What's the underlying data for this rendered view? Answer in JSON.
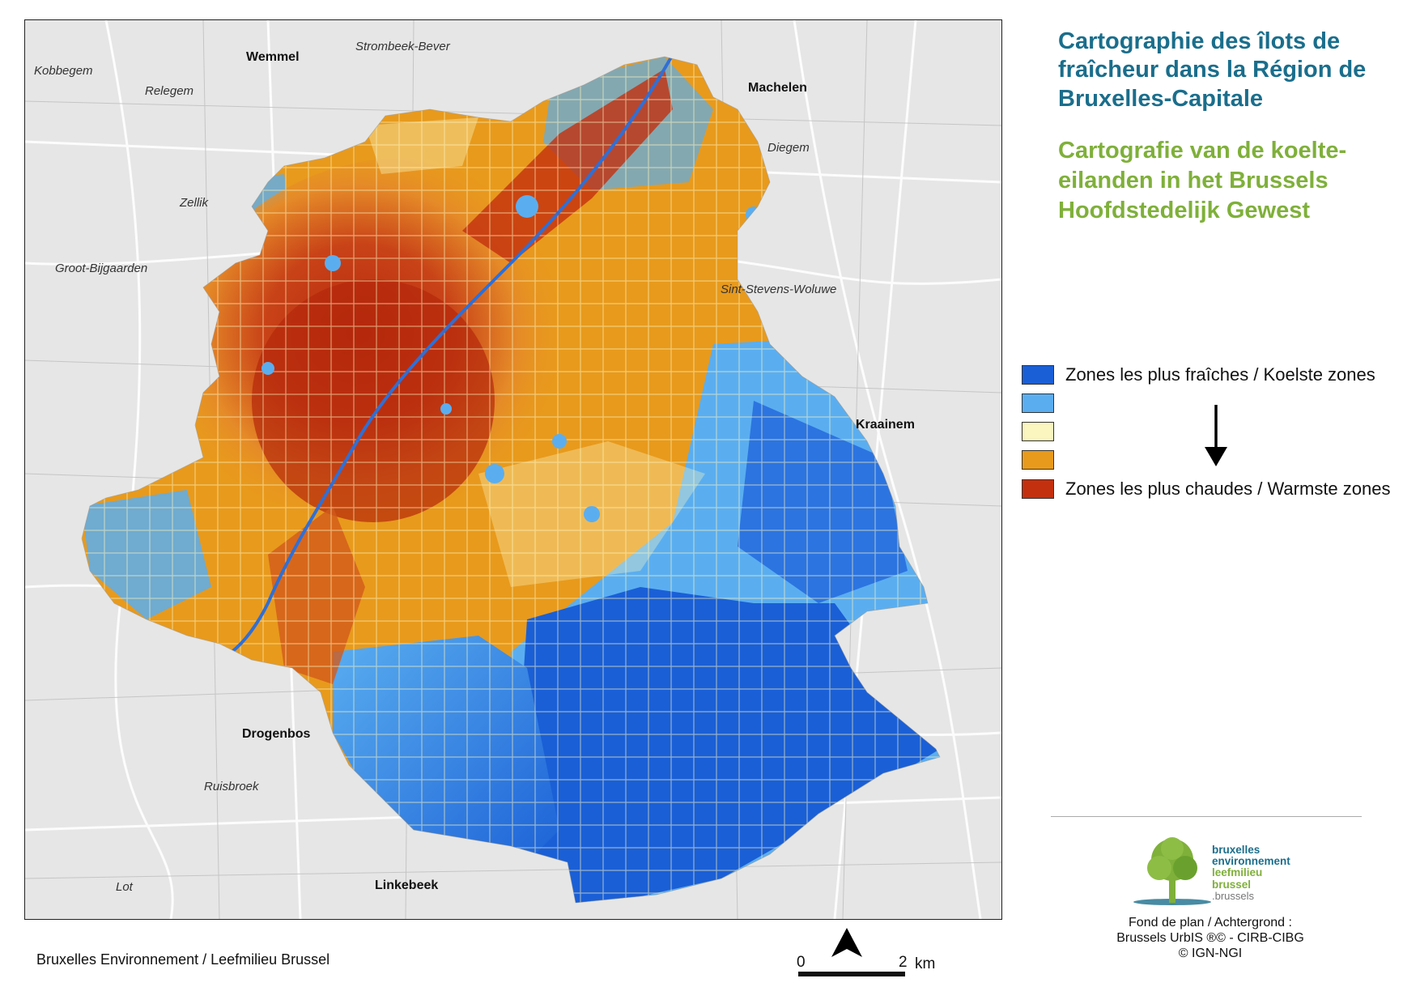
{
  "titles": {
    "fr": "Cartographie des îlots de fraîcheur dans la Région de Bruxelles-Capitale",
    "nl": "Cartografie van de koelte-eilanden in het Brussels Hoofdstedelijk Gewest"
  },
  "legend": {
    "items": [
      {
        "color": "#1a5fd6",
        "label": "Zones les plus fraîches / Koelste zones"
      },
      {
        "color": "#5aaef0",
        "label": ""
      },
      {
        "color": "#fbf5bf",
        "label": ""
      },
      {
        "color": "#e89a1c",
        "label": ""
      },
      {
        "color": "#c3300f",
        "label": "Zones les plus chaudes / Warmste zones"
      }
    ]
  },
  "places": [
    {
      "name": "Wemmel",
      "kind": "town"
    },
    {
      "name": "Strombeek-Bever",
      "kind": "village"
    },
    {
      "name": "Kobbegem",
      "kind": "village"
    },
    {
      "name": "Relegem",
      "kind": "village"
    },
    {
      "name": "Machelen",
      "kind": "town"
    },
    {
      "name": "Diegem",
      "kind": "village"
    },
    {
      "name": "Zellik",
      "kind": "village"
    },
    {
      "name": "Groot-Bijgaarden",
      "kind": "village"
    },
    {
      "name": "Sint-Stevens-Woluwe",
      "kind": "village"
    },
    {
      "name": "Kraainem",
      "kind": "town"
    },
    {
      "name": "Drogenbos",
      "kind": "town"
    },
    {
      "name": "Ruisbroek",
      "kind": "village"
    },
    {
      "name": "Linkebeek",
      "kind": "town"
    },
    {
      "name": "Lot",
      "kind": "village"
    }
  ],
  "logo": {
    "lines": [
      "bruxelles",
      "environnement",
      "leefmilieu",
      "brussel",
      ".brussels"
    ]
  },
  "credits": {
    "line1": "Fond de plan / Achtergrond :",
    "line2": "Brussels UrbIS ®© - CIRB-CIBG",
    "line3": "© IGN-NGI"
  },
  "footer": "Bruxelles Environnement / Leefmilieu Brussel",
  "scale": {
    "start": "0",
    "end": "2",
    "unit": "km"
  }
}
